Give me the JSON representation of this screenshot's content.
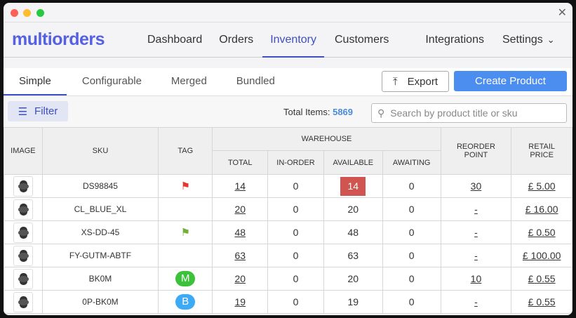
{
  "window": {
    "close": "✕"
  },
  "nav": {
    "logo": "multiorders",
    "items": [
      "Dashboard",
      "Orders",
      "Inventory",
      "Customers",
      "Integrations",
      "Settings"
    ],
    "active": "Inventory"
  },
  "tabs": {
    "items": [
      "Simple",
      "Configurable",
      "Merged",
      "Bundled"
    ],
    "active": "Simple"
  },
  "actions": {
    "export": "Export",
    "create": "Create Product"
  },
  "toolbar": {
    "filter": "Filter",
    "total_label": "Total Items:",
    "total_value": "5869",
    "search_placeholder": "Search by product title or sku"
  },
  "table": {
    "headers": {
      "image": "IMAGE",
      "sku": "SKU",
      "tag": "TAG",
      "warehouse": "WAREHOUSE",
      "total": "TOTAL",
      "in_order": "IN-ORDER",
      "available": "AVAILABLE",
      "awaiting": "AWAITING",
      "reorder": "REORDER POINT",
      "price": "RETAIL PRICE"
    },
    "rows": [
      {
        "sku": "DS98845",
        "tag": "red-flag",
        "total": "14",
        "in_order": "0",
        "available": "14",
        "available_alert": true,
        "awaiting": "0",
        "reorder": "30",
        "price": "£ 5.00"
      },
      {
        "sku": "CL_BLUE_XL",
        "tag": "",
        "total": "20",
        "in_order": "0",
        "available": "20",
        "awaiting": "0",
        "reorder": "-",
        "price": "£ 16.00"
      },
      {
        "sku": "XS-DD-45",
        "tag": "green-flag",
        "total": "48",
        "in_order": "0",
        "available": "48",
        "awaiting": "0",
        "reorder": "-",
        "price": "£ 0.50"
      },
      {
        "sku": "FY-GUTM-ABTF",
        "tag": "",
        "total": "63",
        "in_order": "0",
        "available": "63",
        "awaiting": "0",
        "reorder": "-",
        "price": "£ 100.00"
      },
      {
        "sku": "BK0M",
        "tag": "M",
        "tag_color": "#3cc13b",
        "total": "20",
        "in_order": "0",
        "available": "20",
        "awaiting": "0",
        "reorder": "10",
        "price": "£ 0.55"
      },
      {
        "sku": "0P-BK0M",
        "tag": "B",
        "tag_color": "#3daaf5",
        "total": "19",
        "in_order": "0",
        "available": "19",
        "awaiting": "0",
        "reorder": "-",
        "price": "£ 0.55"
      }
    ]
  }
}
